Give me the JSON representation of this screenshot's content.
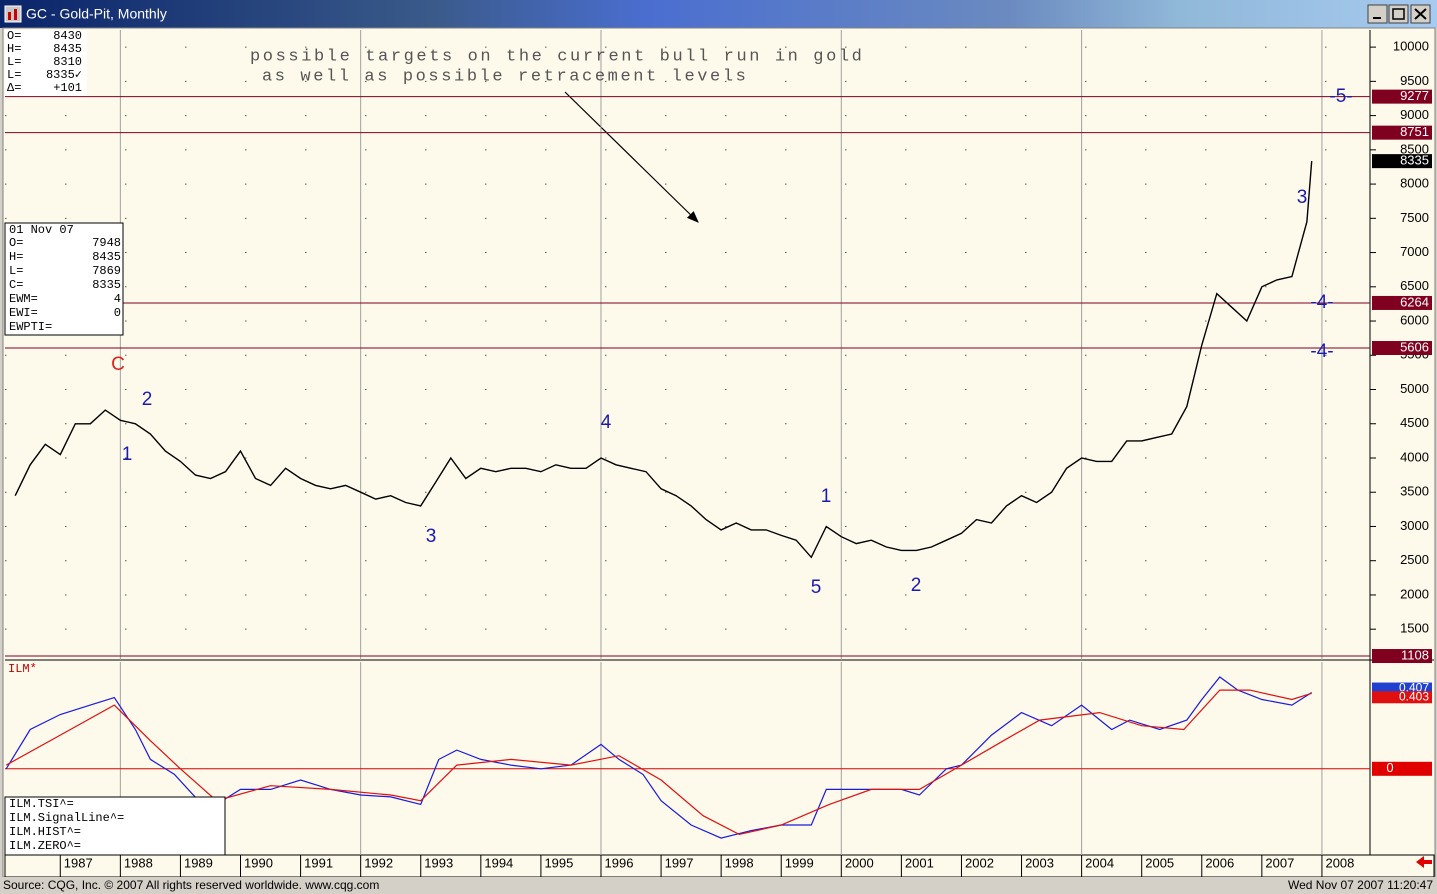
{
  "window": {
    "title": "GC - Gold-Pit, Monthly",
    "footer_left": "Source: CQG, Inc. © 2007 All rights reserved worldwide. www.cqg.com",
    "footer_right": "Wed Nov 07 2007 11:20:47"
  },
  "quote_box": {
    "rows": [
      [
        "O=",
        "8430"
      ],
      [
        "H=",
        "8435"
      ],
      [
        "L=",
        "8310"
      ],
      [
        "L=",
        "8335✓"
      ],
      [
        "Δ=",
        "+101"
      ]
    ]
  },
  "bar_box": {
    "date": "01 Nov 07",
    "rows": [
      [
        "O=",
        "7948"
      ],
      [
        "H=",
        "8435"
      ],
      [
        "L=",
        "7869"
      ],
      [
        "C=",
        "8335"
      ],
      [
        "EWM=",
        "4"
      ],
      [
        "EWI=",
        "0"
      ],
      [
        "EWPTI=",
        ""
      ]
    ]
  },
  "chart_data": [
    {
      "type": "line",
      "annotations": [
        "possible targets on the current bull run in gold",
        "as well as possible retracement levels"
      ],
      "x": [
        1986.25,
        1986.5,
        1986.75,
        1987,
        1987.25,
        1987.5,
        1987.75,
        1988,
        1988.25,
        1988.5,
        1988.75,
        1989,
        1989.25,
        1989.5,
        1989.75,
        1990,
        1990.25,
        1990.5,
        1990.75,
        1991,
        1991.25,
        1991.5,
        1991.75,
        1992,
        1992.25,
        1992.5,
        1992.75,
        1993,
        1993.25,
        1993.5,
        1993.75,
        1994,
        1994.25,
        1994.5,
        1994.75,
        1995,
        1995.25,
        1995.5,
        1995.75,
        1996,
        1996.25,
        1996.5,
        1996.75,
        1997,
        1997.25,
        1997.5,
        1997.75,
        1998,
        1998.25,
        1998.5,
        1998.75,
        1999,
        1999.25,
        1999.5,
        1999.75,
        2000,
        2000.25,
        2000.5,
        2000.75,
        2001,
        2001.25,
        2001.5,
        2001.75,
        2002,
        2002.25,
        2002.5,
        2002.75,
        2003,
        2003.25,
        2003.5,
        2003.75,
        2004,
        2004.25,
        2004.5,
        2004.75,
        2005,
        2005.25,
        2005.5,
        2005.75,
        2006,
        2006.25,
        2006.5,
        2006.75,
        2007,
        2007.25,
        2007.5,
        2007.75,
        2007.83
      ],
      "values": [
        3450,
        3900,
        4200,
        4050,
        4500,
        4500,
        4700,
        4550,
        4500,
        4350,
        4100,
        3950,
        3750,
        3700,
        3800,
        4100,
        3700,
        3600,
        3850,
        3700,
        3600,
        3550,
        3600,
        3500,
        3400,
        3450,
        3350,
        3300,
        3650,
        4000,
        3700,
        3850,
        3800,
        3850,
        3850,
        3800,
        3900,
        3850,
        3850,
        4000,
        3900,
        3850,
        3800,
        3550,
        3450,
        3300,
        3100,
        2950,
        3050,
        2950,
        2950,
        2870,
        2800,
        2550,
        3000,
        2850,
        2750,
        2800,
        2700,
        2650,
        2650,
        2700,
        2800,
        2900,
        3100,
        3050,
        3300,
        3450,
        3350,
        3500,
        3850,
        4000,
        3950,
        3950,
        4250,
        4250,
        4300,
        4350,
        4750,
        5650,
        6400,
        6200,
        6000,
        6500,
        6600,
        6650,
        7450,
        8335
      ],
      "color": "#000000",
      "levels": [
        9277,
        8751,
        6264,
        5606,
        1108
      ],
      "level_color": "#800020",
      "xlim": [
        1986.08,
        2008.8
      ],
      "xticks": [
        1987,
        1988,
        1989,
        1990,
        1991,
        1992,
        1993,
        1994,
        1995,
        1996,
        1997,
        1998,
        1999,
        2000,
        2001,
        2002,
        2003,
        2004,
        2005,
        2006,
        2007,
        2008
      ],
      "ylim": [
        1050,
        10250
      ],
      "yticks": [
        1500,
        2000,
        2500,
        3000,
        3500,
        4000,
        4500,
        5000,
        5500,
        6000,
        6500,
        7000,
        7500,
        8000,
        8500,
        9000,
        9500,
        10000
      ],
      "grid": true,
      "wave_labels": [
        {
          "text": "C",
          "color": "#e02020"
        },
        {
          "text": "2",
          "color": "#1a1ab0"
        },
        {
          "text": "1",
          "color": "#1a1ab0"
        },
        {
          "text": "4",
          "color": "#1a1ab0"
        },
        {
          "text": "3",
          "color": "#1a1ab0"
        },
        {
          "text": "1",
          "color": "#1a1ab0"
        },
        {
          "text": "5",
          "color": "#1a1ab0"
        },
        {
          "text": "2",
          "color": "#1a1ab0"
        },
        {
          "text": "3",
          "color": "#1a1ab0"
        },
        {
          "text": "-5-",
          "color": "#1a1ab0"
        },
        {
          "text": "-4-",
          "color": "#1a1ab0"
        },
        {
          "text": "-4-",
          "color": "#1a1ab0"
        }
      ]
    },
    {
      "type": "line",
      "label": "ILM*",
      "ylim": [
        -0.46,
        0.57
      ],
      "zero": 0,
      "zero_color": "#e00000",
      "series": [
        {
          "name": "ILM.TSI^=",
          "color": "#1a1ae0",
          "x": [
            1986.1,
            1986.5,
            1987,
            1987.5,
            1987.9,
            1988.25,
            1988.5,
            1988.9,
            1989.3,
            1989.6,
            1990,
            1990.5,
            1991,
            1991.5,
            1992,
            1992.5,
            1993,
            1993.3,
            1993.6,
            1994,
            1994.5,
            1995,
            1995.5,
            1996,
            1996.3,
            1996.7,
            1997,
            1997.5,
            1998,
            1998.5,
            1999,
            1999.5,
            1999.75,
            2000,
            2000.5,
            2001,
            2001.3,
            2001.75,
            2002,
            2002.5,
            2003,
            2003.5,
            2004,
            2004.5,
            2004.8,
            2005.3,
            2005.75,
            2006,
            2006.3,
            2006.6,
            2007,
            2007.5,
            2007.83
          ],
          "values": [
            0,
            0.21,
            0.29,
            0.34,
            0.38,
            0.21,
            0.05,
            -0.03,
            -0.17,
            -0.19,
            -0.11,
            -0.11,
            -0.06,
            -0.11,
            -0.14,
            -0.15,
            -0.19,
            0.05,
            0.1,
            0.05,
            0.02,
            0,
            0.02,
            0.13,
            0.05,
            -0.03,
            -0.17,
            -0.3,
            -0.37,
            -0.33,
            -0.3,
            -0.3,
            -0.11,
            -0.11,
            -0.11,
            -0.11,
            -0.14,
            0,
            0.02,
            0.18,
            0.3,
            0.23,
            0.34,
            0.21,
            0.26,
            0.21,
            0.26,
            0.37,
            0.49,
            0.42,
            0.37,
            0.34,
            0.407
          ],
          "box_color": "#2040d0"
        },
        {
          "name": "ILM.SignalLine^=",
          "color": "#e01010",
          "x": [
            1986.1,
            1987,
            1987.9,
            1988.5,
            1989,
            1989.6,
            1990.5,
            1991.5,
            1992.5,
            1993,
            1993.6,
            1994.5,
            1995.5,
            1996.3,
            1997,
            1997.7,
            1998.3,
            1999,
            1999.8,
            2000.5,
            2001.3,
            2002,
            2002.7,
            2003.3,
            2004.3,
            2005,
            2005.7,
            2006.3,
            2006.8,
            2007.5,
            2007.83
          ],
          "values": [
            0.02,
            0.18,
            0.34,
            0.15,
            0,
            -0.17,
            -0.09,
            -0.11,
            -0.14,
            -0.17,
            0.02,
            0.05,
            0.02,
            0.07,
            -0.06,
            -0.25,
            -0.35,
            -0.3,
            -0.19,
            -0.11,
            -0.11,
            0.02,
            0.15,
            0.26,
            0.3,
            0.23,
            0.21,
            0.42,
            0.42,
            0.37,
            0.403
          ],
          "box_color": "#e01010"
        }
      ],
      "legend_extra": [
        "ILM.HIST^=",
        "ILM.ZERO^="
      ]
    }
  ]
}
